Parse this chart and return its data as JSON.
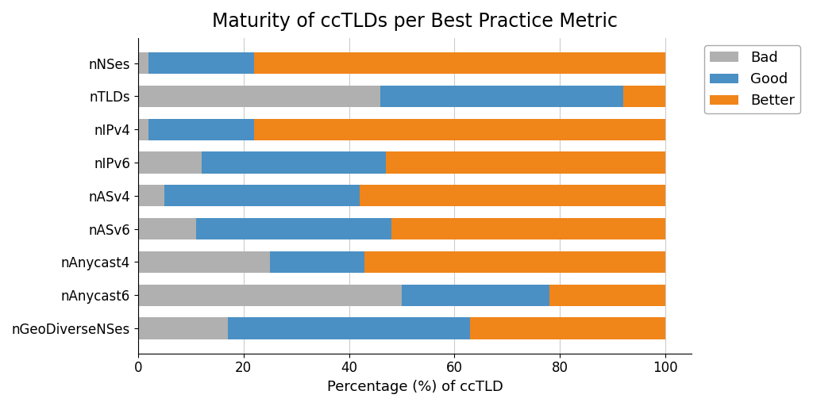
{
  "categories": [
    "nNSes",
    "nTLDs",
    "nIPv4",
    "nIPv6",
    "nASv4",
    "nASv6",
    "nAnycast4",
    "nAnycast6",
    "nGeoDiverseNSes"
  ],
  "bad": [
    2,
    46,
    2,
    12,
    5,
    11,
    25,
    50,
    17
  ],
  "good": [
    20,
    46,
    20,
    35,
    37,
    37,
    18,
    28,
    46
  ],
  "better": [
    78,
    8,
    78,
    53,
    58,
    52,
    57,
    22,
    37
  ],
  "color_bad": "#b0b0b0",
  "color_good": "#4a90c4",
  "color_better": "#f0851a",
  "title": "Maturity of ccTLDs per Best Practice Metric",
  "xlabel": "Percentage (%) of ccTLD",
  "legend_labels": [
    "Bad",
    "Good",
    "Better"
  ],
  "xlim": [
    0,
    105
  ],
  "title_fontsize": 17,
  "label_fontsize": 13,
  "tick_fontsize": 12,
  "legend_fontsize": 13,
  "bar_height": 0.65,
  "figsize": [
    10.24,
    5.12
  ],
  "dpi": 100,
  "background_color": "#ffffff",
  "grid_color": "#cccccc"
}
